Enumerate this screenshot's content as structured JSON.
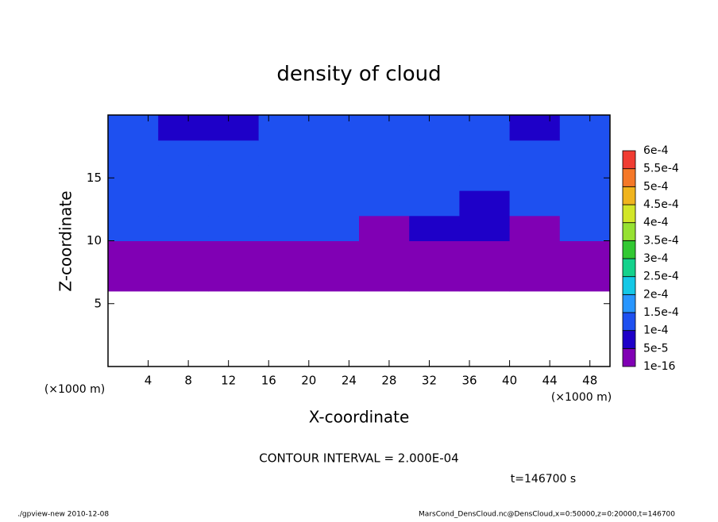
{
  "chart_data": {
    "type": "contour",
    "title": "density of cloud",
    "xlabel": "X-coordinate",
    "ylabel": "Z-coordinate",
    "x_unit_label": "(×1000 m)",
    "contour_note": "CONTOUR INTERVAL = 2.000E-04",
    "time_label": "t=146700 s",
    "footer_left": "./gpview-new  2010-12-08",
    "footer_right": "MarsCond_DensCloud.nc@DensCloud,x=0:50000,z=0:20000,t=146700",
    "xlim": [
      0,
      50
    ],
    "xticks": [
      4,
      8,
      12,
      16,
      20,
      24,
      28,
      32,
      36,
      40,
      44,
      48
    ],
    "ylim": [
      0,
      20
    ],
    "yticks": [
      5,
      10,
      15
    ],
    "x": [
      2.5,
      7.5,
      12.5,
      17.5,
      22.5,
      27.5,
      32.5,
      37.5,
      42.5,
      47.5
    ],
    "z": [
      1,
      3,
      5,
      7,
      9,
      11,
      13,
      15,
      17,
      19
    ],
    "values": [
      [
        null,
        null,
        null,
        null,
        null,
        null,
        null,
        null,
        null,
        null
      ],
      [
        null,
        null,
        null,
        null,
        null,
        null,
        null,
        null,
        null,
        null
      ],
      [
        null,
        null,
        null,
        null,
        null,
        null,
        null,
        null,
        null,
        null
      ],
      [
        3e-05,
        3e-05,
        3e-05,
        3e-05,
        3e-05,
        3e-05,
        3e-05,
        3e-05,
        3e-05,
        3e-05
      ],
      [
        3e-05,
        3e-05,
        3e-05,
        3e-05,
        3e-05,
        3e-05,
        3e-05,
        3e-05,
        3e-05,
        3e-05
      ],
      [
        0.00012,
        0.00012,
        0.00012,
        0.00012,
        0.00012,
        3e-05,
        7e-05,
        7e-05,
        3e-05,
        0.00012
      ],
      [
        0.00012,
        0.00012,
        0.00012,
        0.00012,
        0.00012,
        0.00012,
        0.00012,
        7e-05,
        0.00012,
        0.00012
      ],
      [
        0.00012,
        0.00012,
        0.00012,
        0.00012,
        0.00012,
        0.00012,
        0.00012,
        0.00012,
        0.00012,
        0.00012
      ],
      [
        0.00014,
        0.00012,
        0.00012,
        0.00012,
        0.00012,
        0.00012,
        0.00012,
        0.00012,
        0.00012,
        0.00012
      ],
      [
        0.00012,
        7e-05,
        7e-05,
        0.00012,
        0.00012,
        0.00012,
        0.00012,
        0.00012,
        7e-05,
        0.00012
      ]
    ],
    "levels": [
      {
        "value": 1e-16,
        "label": "1e-16"
      },
      {
        "value": 5e-05,
        "label": "5e-5"
      },
      {
        "value": 0.0001,
        "label": "1e-4"
      },
      {
        "value": 0.00015,
        "label": "1.5e-4"
      },
      {
        "value": 0.0002,
        "label": "2e-4"
      },
      {
        "value": 0.00025,
        "label": "2.5e-4"
      },
      {
        "value": 0.0003,
        "label": "3e-4"
      },
      {
        "value": 0.00035,
        "label": "3.5e-4"
      },
      {
        "value": 0.0004,
        "label": "4e-4"
      },
      {
        "value": 0.00045,
        "label": "4.5e-4"
      },
      {
        "value": 0.0005,
        "label": "5e-4"
      },
      {
        "value": 0.00055,
        "label": "5.5e-4"
      },
      {
        "value": 0.0006,
        "label": "6e-4"
      }
    ],
    "colors": [
      "#8000b4",
      "#1e00c8",
      "#1e50f0",
      "#2896ff",
      "#14c8e6",
      "#14d28c",
      "#32c832",
      "#96e132",
      "#d2e628",
      "#f0b41e",
      "#f57828",
      "#f03c32",
      "#fa8c8c"
    ]
  }
}
